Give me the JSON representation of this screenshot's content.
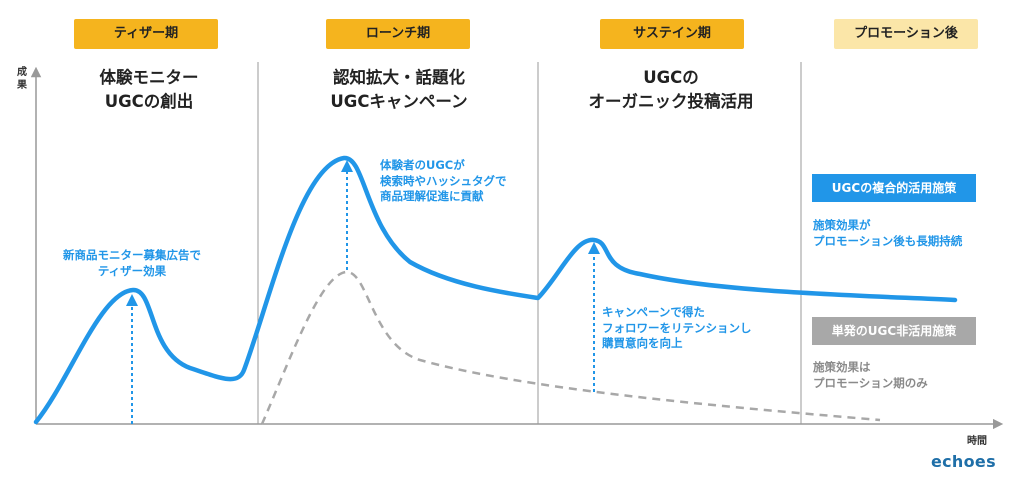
{
  "axes": {
    "y_label": "成\n果",
    "x_label": "時間"
  },
  "phases": [
    {
      "badge": "ティザー期",
      "title": "体験モニター\nUGCの創出",
      "badge_color": "#f5b41e"
    },
    {
      "badge": "ローンチ期",
      "title": "認知拡大・話題化\nUGCキャンペーン",
      "badge_color": "#f5b41e"
    },
    {
      "badge": "サステイン期",
      "title": "UGCの\nオーガニック投稿活用",
      "badge_color": "#f5b41e"
    },
    {
      "badge": "プロモーション後",
      "title": "",
      "badge_color": "#fbe6a8"
    }
  ],
  "notes": {
    "teaser": "新商品モニター募集広告で\nティザー効果",
    "launch": "体験者のUGCが\n検索時やハッシュタグで\n商品理解促進に貢献",
    "sustain": "キャンペーンで得た\nフォロワーをリテンションし\n購買意向を向上"
  },
  "legend": {
    "with_ugc": {
      "label": "UGCの複合的活用施策",
      "desc": "施策効果が\nプロモーション後も長期持続",
      "color": "#2196e8"
    },
    "without_ugc": {
      "label": "単発のUGC非活用施策",
      "desc": "施策効果は\nプロモーション期のみ",
      "color": "#a8a8a8"
    }
  },
  "logo": "echoes"
}
